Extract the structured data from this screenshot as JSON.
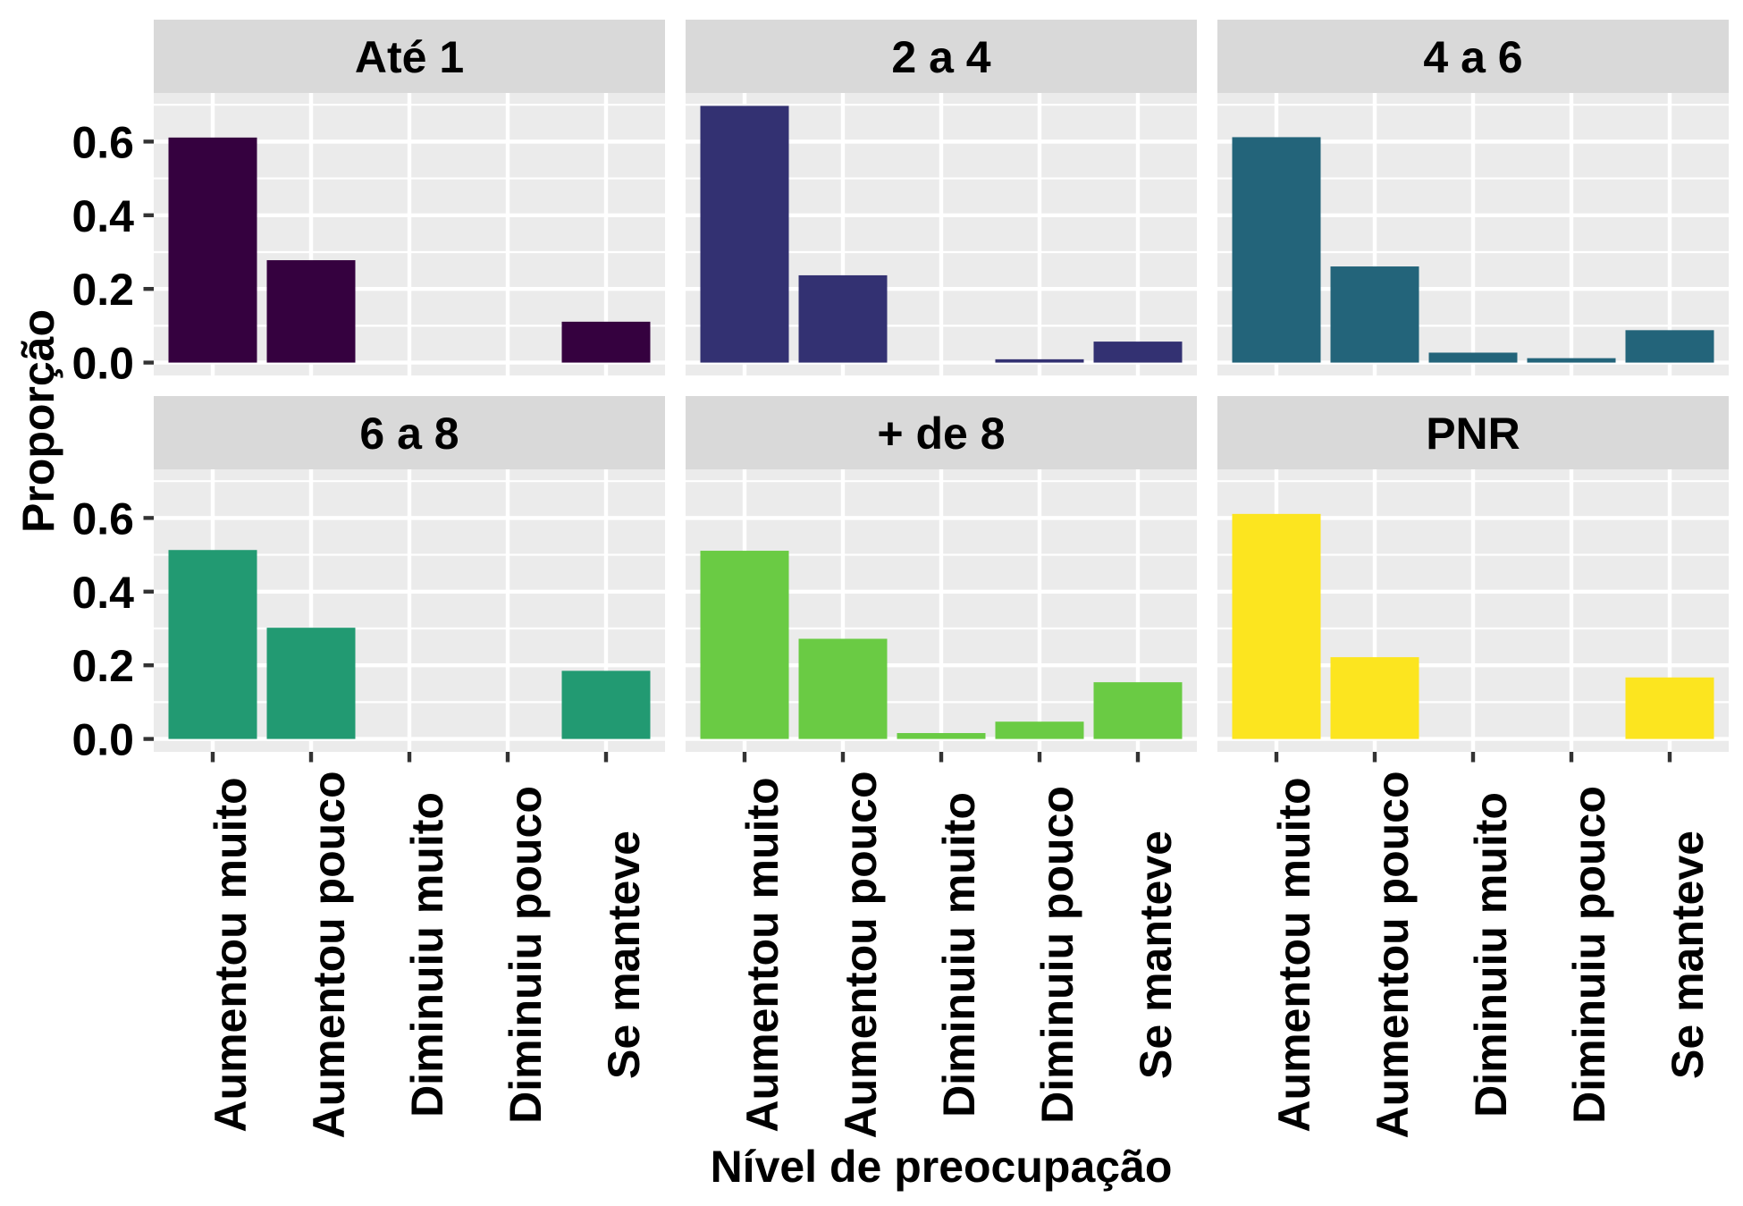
{
  "chart_data": {
    "type": "bar",
    "xlabel": "Nível de preocupação",
    "ylabel": "Proporção",
    "categories": [
      "Aumentou muito",
      "Aumentou pouco",
      "Diminuiu muito",
      "Diminuiu pouco",
      "Se manteve"
    ],
    "ylim": [
      -0.035,
      0.732
    ],
    "yticks": [
      0.0,
      0.2,
      0.4,
      0.6
    ],
    "ytick_labels": [
      "0.0",
      "0.2",
      "0.4",
      "0.6"
    ],
    "grid": true,
    "legend": "none",
    "series": [
      {
        "name": "Até 1",
        "color": "#35013F",
        "values": [
          0.611,
          0.278,
          0,
          0,
          0.111
        ]
      },
      {
        "name": "2 a 4",
        "color": "#333172",
        "values": [
          0.697,
          0.237,
          0,
          0.009,
          0.057
        ]
      },
      {
        "name": "4 a 6",
        "color": "#23647A",
        "values": [
          0.612,
          0.261,
          0.027,
          0.012,
          0.088
        ]
      },
      {
        "name": "6 a 8",
        "color": "#229A72",
        "values": [
          0.513,
          0.302,
          0,
          0,
          0.185
        ]
      },
      {
        "name": "+ de 8",
        "color": "#6ACB44",
        "values": [
          0.511,
          0.272,
          0.016,
          0.047,
          0.154
        ]
      },
      {
        "name": "PNR",
        "color": "#FCE51F",
        "values": [
          0.611,
          0.222,
          0,
          0,
          0.167
        ]
      }
    ]
  }
}
